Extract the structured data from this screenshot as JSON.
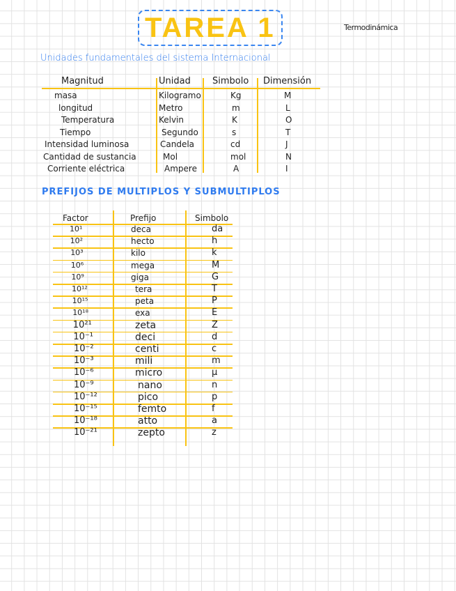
{
  "title": "TAREA 1",
  "subject": "Termodinámica",
  "section1": {
    "heading": "Unidades fundamentales del sistema Internacional",
    "headers": [
      "Magnitud",
      "Unidad",
      "Simbolo",
      "Dimensión"
    ],
    "rows": [
      [
        "masa",
        "Kilogramo",
        "Kg",
        "M"
      ],
      [
        "longitud",
        "Metro",
        "m",
        "L"
      ],
      [
        "Temperatura",
        "Kelvin",
        "K",
        "O"
      ],
      [
        "Tiempo",
        "Segundo",
        "s",
        "T"
      ],
      [
        "Intensidad luminosa",
        "Candela",
        "cd",
        "J"
      ],
      [
        "Cantidad de sustancia",
        "Mol",
        "mol",
        "N"
      ],
      [
        "Corriente eléctrica",
        "Ampere",
        "A",
        "I"
      ]
    ]
  },
  "section2": {
    "heading": "PREFIJOS DE MULTIPLOS Y SUBMULTIPLOS",
    "headers": [
      "Factor",
      "Prefijo",
      "Simbolo"
    ],
    "rows": [
      [
        "10¹",
        "deca",
        "da"
      ],
      [
        "10²",
        "hecto",
        "h"
      ],
      [
        "10³",
        "kilo",
        "k"
      ],
      [
        "10⁶",
        "mega",
        "M"
      ],
      [
        "10⁹",
        "giga",
        "G"
      ],
      [
        "10¹²",
        "tera",
        "T"
      ],
      [
        "10¹⁵",
        "peta",
        "P"
      ],
      [
        "10¹⁸",
        "exa",
        "E"
      ],
      [
        "10²¹",
        "zeta",
        "Z"
      ],
      [
        "10⁻¹",
        "deci",
        "d"
      ],
      [
        "10⁻²",
        "centi",
        "c"
      ],
      [
        "10⁻³",
        "mili",
        "m"
      ],
      [
        "10⁻⁶",
        "micro",
        "µ"
      ],
      [
        "10⁻⁹",
        "nano",
        "n"
      ],
      [
        "10⁻¹²",
        "pico",
        "p"
      ],
      [
        "10⁻¹⁵",
        "femto",
        "f"
      ],
      [
        "10⁻¹⁸",
        "atto",
        "a"
      ],
      [
        "10⁻²¹",
        "zepto",
        "z"
      ]
    ]
  },
  "colors": {
    "highlight": "#f9c313",
    "accent": "#2f7bef"
  }
}
